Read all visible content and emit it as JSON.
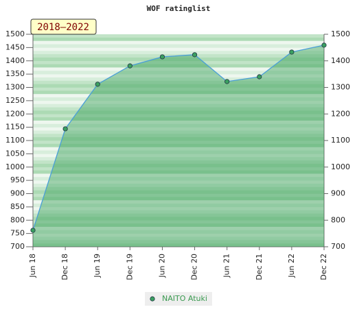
{
  "chart_data": {
    "type": "area",
    "title": "WOF ratinglist",
    "annotation": "2018–2022",
    "categories": [
      "Jun 18",
      "Dec 18",
      "Jun 19",
      "Dec 19",
      "Jun 20",
      "Dec 20",
      "Jun 21",
      "Dec 21",
      "Jun 22",
      "Dec 22"
    ],
    "series": [
      {
        "name": "NAITO Atuki",
        "color": "#4a9fd8",
        "marker_color": "#3aa060",
        "values": [
          762,
          1144,
          1312,
          1381,
          1415,
          1423,
          1322,
          1340,
          1433,
          1459
        ]
      }
    ],
    "ylim": [
      700,
      1500
    ],
    "yticks": [
      700,
      750,
      800,
      850,
      900,
      950,
      1000,
      1050,
      1100,
      1150,
      1200,
      1250,
      1300,
      1350,
      1400,
      1450,
      1500
    ],
    "y2lim": [
      700,
      1500
    ],
    "y2ticks": [
      700,
      800,
      900,
      1000,
      1100,
      1200,
      1300,
      1400,
      1500
    ],
    "legend": "bottom"
  }
}
